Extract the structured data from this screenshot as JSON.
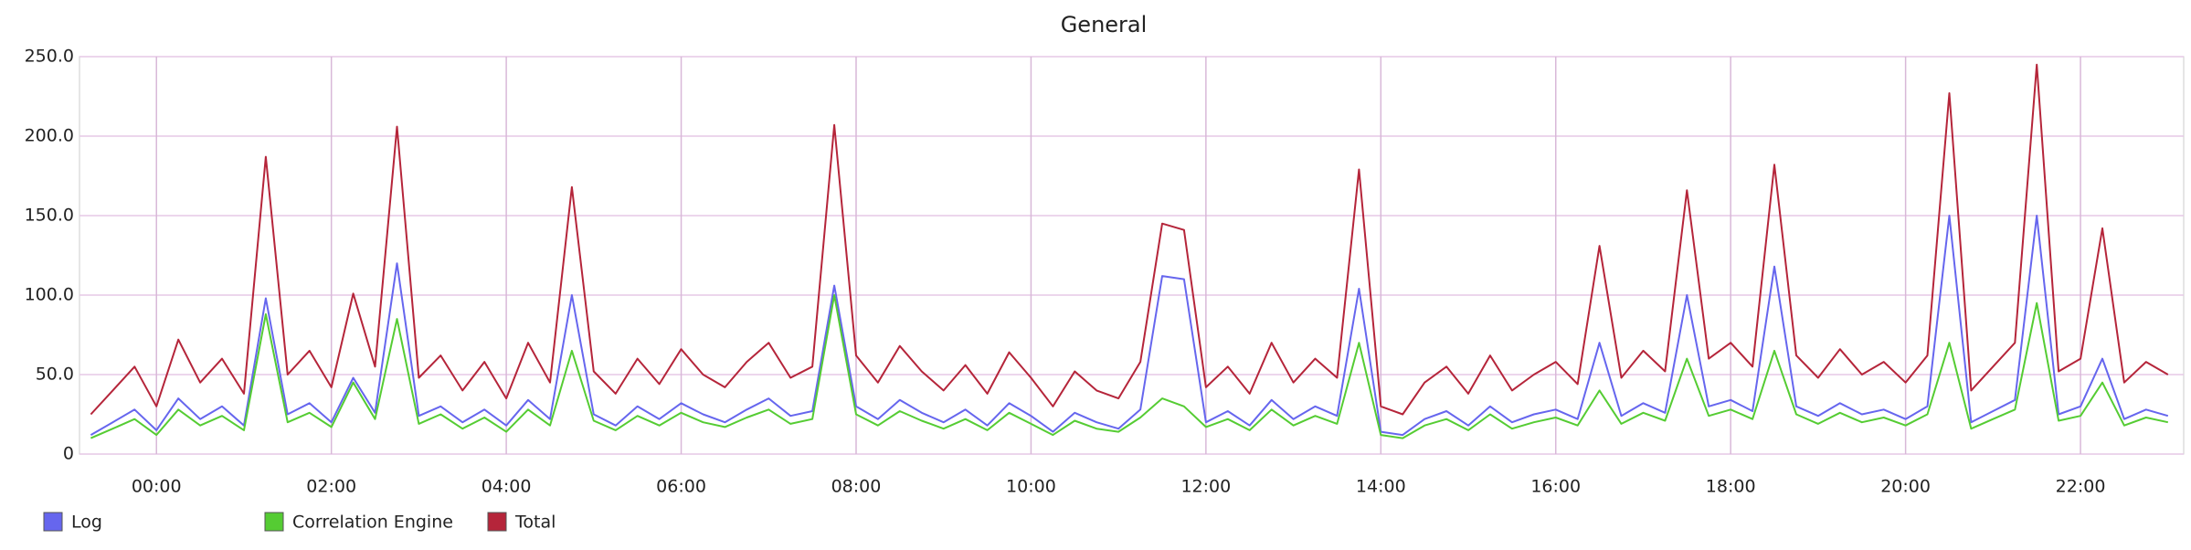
{
  "chart_data": {
    "type": "line",
    "title": "General",
    "x": [
      -0.75,
      -0.5,
      -0.25,
      0,
      0.25,
      0.5,
      0.75,
      1,
      1.25,
      1.5,
      1.75,
      2,
      2.25,
      2.5,
      2.75,
      3,
      3.25,
      3.5,
      3.75,
      4,
      4.25,
      4.5,
      4.75,
      5,
      5.25,
      5.5,
      5.75,
      6,
      6.25,
      6.5,
      6.75,
      7,
      7.25,
      7.5,
      7.75,
      8,
      8.25,
      8.5,
      8.75,
      9,
      9.25,
      9.5,
      9.75,
      10,
      10.25,
      10.5,
      10.75,
      11,
      11.25,
      11.5,
      11.75,
      12,
      12.25,
      12.5,
      12.75,
      13,
      13.25,
      13.5,
      13.75,
      14,
      14.25,
      14.5,
      14.75,
      15,
      15.25,
      15.5,
      15.75,
      16,
      16.25,
      16.5,
      16.75,
      17,
      17.25,
      17.5,
      17.75,
      18,
      18.25,
      18.5,
      18.75,
      19,
      19.25,
      19.5,
      19.75,
      20,
      20.25,
      20.5,
      20.75,
      21,
      21.25,
      21.5,
      21.75,
      22,
      22.25,
      22.5,
      22.75,
      23
    ],
    "series": [
      {
        "name": "Log",
        "color": "#6666ee",
        "values": [
          12,
          20,
          28,
          15,
          35,
          22,
          30,
          18,
          98,
          25,
          32,
          20,
          48,
          26,
          120,
          24,
          30,
          20,
          28,
          18,
          34,
          22,
          100,
          25,
          18,
          30,
          22,
          32,
          25,
          20,
          28,
          35,
          24,
          27,
          106,
          30,
          22,
          34,
          26,
          20,
          28,
          18,
          32,
          24,
          14,
          26,
          20,
          16,
          28,
          112,
          110,
          20,
          27,
          18,
          34,
          22,
          30,
          24,
          104,
          14,
          12,
          22,
          27,
          18,
          30,
          20,
          25,
          28,
          22,
          70,
          24,
          32,
          26,
          100,
          30,
          34,
          27,
          118,
          30,
          24,
          32,
          25,
          28,
          22,
          30,
          150,
          20,
          27,
          34,
          150,
          25,
          30,
          60,
          22,
          28,
          24
        ]
      },
      {
        "name": "Correlation Engine",
        "color": "#55cc33",
        "values": [
          10,
          16,
          22,
          12,
          28,
          18,
          24,
          15,
          88,
          20,
          26,
          17,
          45,
          22,
          85,
          19,
          25,
          16,
          23,
          14,
          28,
          18,
          65,
          21,
          15,
          24,
          18,
          26,
          20,
          17,
          23,
          28,
          19,
          22,
          100,
          25,
          18,
          27,
          21,
          16,
          22,
          15,
          26,
          19,
          12,
          21,
          16,
          14,
          23,
          35,
          30,
          17,
          22,
          15,
          28,
          18,
          24,
          19,
          70,
          12,
          10,
          18,
          22,
          15,
          25,
          16,
          20,
          23,
          18,
          40,
          19,
          26,
          21,
          60,
          24,
          28,
          22,
          65,
          25,
          19,
          26,
          20,
          23,
          18,
          25,
          70,
          16,
          22,
          28,
          95,
          21,
          24,
          45,
          18,
          23,
          20
        ]
      },
      {
        "name": "Total",
        "color": "#b5253a",
        "values": [
          25,
          40,
          55,
          30,
          72,
          45,
          60,
          38,
          187,
          50,
          65,
          42,
          101,
          55,
          206,
          48,
          62,
          40,
          58,
          35,
          70,
          45,
          168,
          52,
          38,
          60,
          44,
          66,
          50,
          42,
          58,
          70,
          48,
          55,
          207,
          62,
          45,
          68,
          52,
          40,
          56,
          38,
          64,
          48,
          30,
          52,
          40,
          35,
          58,
          145,
          141,
          42,
          55,
          38,
          70,
          45,
          60,
          48,
          179,
          30,
          25,
          45,
          55,
          38,
          62,
          40,
          50,
          58,
          44,
          131,
          48,
          65,
          52,
          166,
          60,
          70,
          55,
          182,
          62,
          48,
          66,
          50,
          58,
          45,
          62,
          227,
          40,
          55,
          70,
          245,
          52,
          60,
          142,
          45,
          58,
          50
        ]
      }
    ],
    "xlim": [
      -0.88,
      23.18
    ],
    "xticks": [
      {
        "value": 0,
        "label": "00:00"
      },
      {
        "value": 2,
        "label": "02:00"
      },
      {
        "value": 4,
        "label": "04:00"
      },
      {
        "value": 6,
        "label": "06:00"
      },
      {
        "value": 8,
        "label": "08:00"
      },
      {
        "value": 10,
        "label": "10:00"
      },
      {
        "value": 12,
        "label": "12:00"
      },
      {
        "value": 14,
        "label": "14:00"
      },
      {
        "value": 16,
        "label": "16:00"
      },
      {
        "value": 18,
        "label": "18:00"
      },
      {
        "value": 20,
        "label": "20:00"
      },
      {
        "value": 22,
        "label": "22:00"
      }
    ],
    "ylim": [
      0,
      250
    ],
    "yticks": [
      0,
      {
        "value": 50,
        "label": "50.0"
      },
      {
        "value": 100,
        "label": "100.0"
      },
      {
        "value": 150,
        "label": "150.0"
      },
      {
        "value": 200,
        "label": "200.0"
      },
      {
        "value": 250,
        "label": "250.0"
      }
    ],
    "grid": true,
    "legend": "bottom-left"
  }
}
